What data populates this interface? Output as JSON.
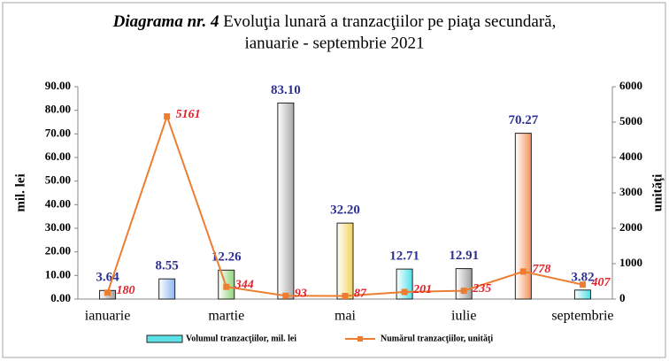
{
  "chart_data": {
    "type": "bar-line",
    "title": [
      "Diagrama nr. 4",
      "Evoluţia lunară a tranzacţiilor pe piaţa secundară,",
      "ianuarie - septembrie 2021"
    ],
    "ylabel": "mil. lei",
    "y2label": "unităţi",
    "categories": [
      "ianuarie",
      null,
      "martie",
      null,
      "mai",
      null,
      "iulie",
      null,
      "septembrie"
    ],
    "series": [
      {
        "name": "Volumul tranzacţiilor, mil. lei",
        "type": "bar",
        "color": "#5ce1e6",
        "colors": [
          "#9e9e9e",
          "#8fb4ee",
          "#8fd47a",
          "#a8a8a8",
          "#f2d35a",
          "#4fe0ea",
          "#9e9e9e",
          "#f5935a",
          "#4fe0ea"
        ],
        "values": [
          3.64,
          8.55,
          12.26,
          83.1,
          32.2,
          12.71,
          12.91,
          70.27,
          3.82
        ],
        "value_labels": [
          "3.64",
          "8.55",
          "12.26",
          "83.10",
          "32.20",
          "12.71",
          "12.91",
          "70.27",
          "3.82"
        ]
      },
      {
        "name": "Numărul tranzacţiilor, unităţi",
        "type": "line",
        "axis": "y2",
        "color": "#ed7d31",
        "values": [
          180,
          5161,
          344,
          93,
          87,
          201,
          235,
          778,
          407
        ]
      }
    ],
    "ylim": [
      0,
      90
    ],
    "yticks": [
      {
        "value": 0,
        "label": "0.00"
      },
      {
        "value": 10,
        "label": "10.00"
      },
      {
        "value": 20,
        "label": "20.00"
      },
      {
        "value": 30,
        "label": "30.00"
      },
      {
        "value": 40,
        "label": "40.00"
      },
      {
        "value": 50,
        "label": "50.00"
      },
      {
        "value": 60,
        "label": "60.00"
      },
      {
        "value": 70,
        "label": "70.00"
      },
      {
        "value": 80,
        "label": "80.00"
      },
      {
        "value": 90,
        "label": "90.00"
      }
    ],
    "y2lim": [
      0,
      6000
    ],
    "y2ticks": [
      0,
      1000,
      2000,
      3000,
      4000,
      5000,
      6000
    ],
    "grid": false,
    "legend": "bottom"
  }
}
